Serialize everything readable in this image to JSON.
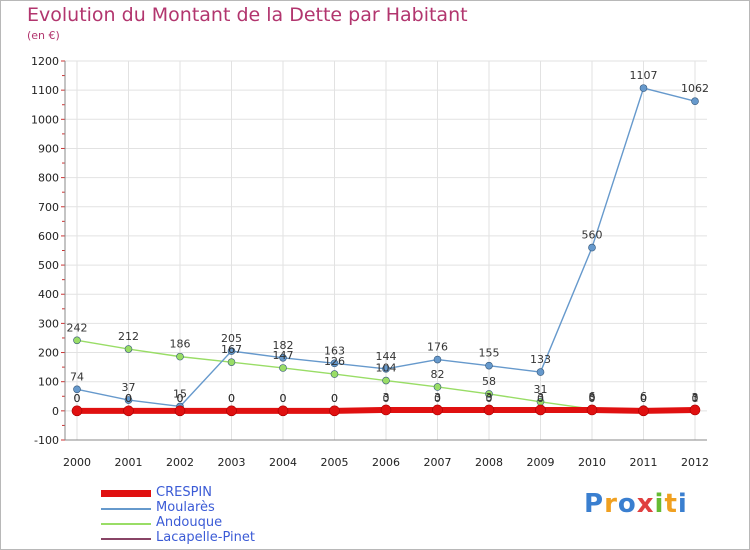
{
  "chart_data": {
    "type": "line",
    "title": "Evolution du Montant de la Dette par Habitant",
    "subtitle": "(en €)",
    "x": [
      "2000",
      "2001",
      "2002",
      "2003",
      "2004",
      "2005",
      "2006",
      "2007",
      "2008",
      "2009",
      "2010",
      "2011",
      "2012"
    ],
    "ylim": [
      -100,
      1200
    ],
    "yticks": [
      -100,
      0,
      100,
      200,
      300,
      400,
      500,
      600,
      700,
      800,
      900,
      1000,
      1100,
      1200
    ],
    "grid": true,
    "legend_placement": "bottom-left",
    "series": [
      {
        "name": "CRESPIN",
        "color": "#e01010",
        "values": [
          0,
          0,
          0,
          0,
          0,
          0,
          3,
          3,
          3,
          3,
          3,
          0,
          3
        ],
        "labels": [
          "0",
          "0",
          "0",
          "0",
          "0",
          "0",
          "3",
          "3",
          "3",
          "3",
          "3",
          "0",
          "3"
        ]
      },
      {
        "name": "Moularès",
        "color": "#6699cc",
        "values": [
          74,
          37,
          15,
          205,
          182,
          163,
          144,
          176,
          155,
          133,
          560,
          1107,
          1062
        ],
        "labels": [
          "74",
          "37",
          "15",
          "205",
          "182",
          "163",
          "144",
          "176",
          "155",
          "133",
          "560",
          "1107",
          "1062"
        ]
      },
      {
        "name": "Andouque",
        "color": "#99dd66",
        "values": [
          242,
          212,
          186,
          167,
          147,
          126,
          104,
          82,
          58,
          31,
          6,
          6,
          1
        ],
        "labels": [
          "242",
          "212",
          "186",
          "167",
          "147",
          "126",
          "104",
          "82",
          "58",
          "31",
          "6",
          "6",
          "1"
        ]
      },
      {
        "name": "Lacapelle-Pinet",
        "color": "#884466",
        "values": [
          0,
          0,
          0,
          0,
          0,
          0,
          0,
          0,
          0,
          0,
          0,
          0,
          0
        ],
        "labels": [
          "0",
          "0",
          "0",
          "0",
          "0",
          "0",
          "0",
          "0",
          "0",
          "0",
          "0",
          "0",
          "0"
        ]
      }
    ]
  },
  "logo": {
    "letters": [
      "P",
      "r",
      "o",
      "x",
      "i",
      "t",
      "i"
    ],
    "colors": [
      "#3a7fd0",
      "#f0a020",
      "#3a7fd0",
      "#e04040",
      "#66bb33",
      "#f0a020",
      "#3a7fd0"
    ]
  }
}
